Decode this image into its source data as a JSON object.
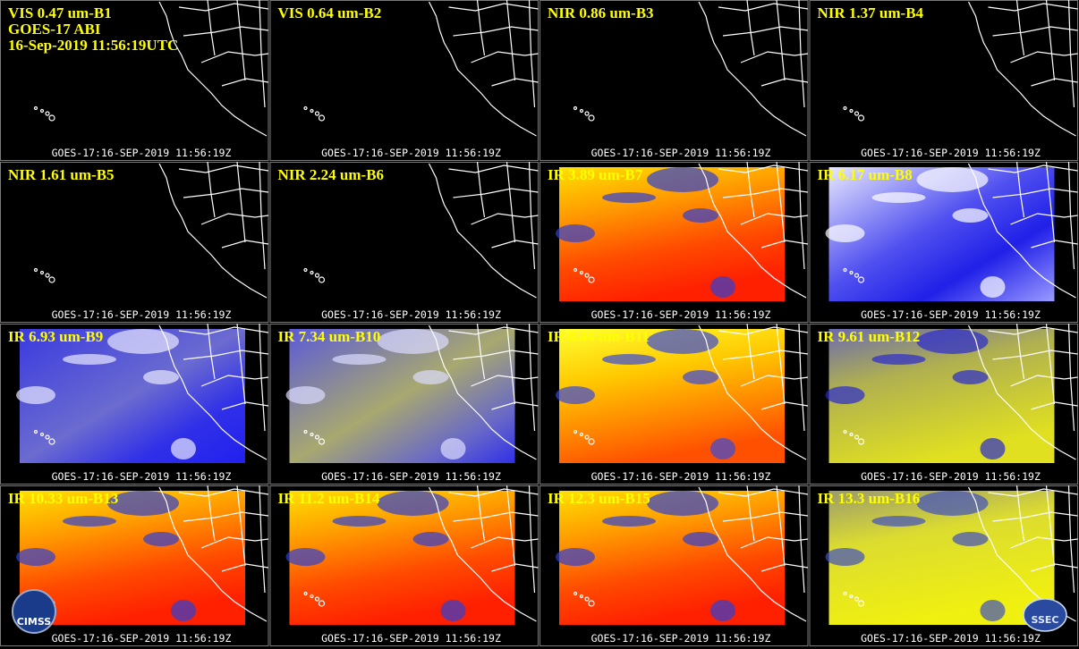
{
  "header": {
    "lines": [
      "GOES-17 ABI",
      "16-Sep-2019 11:56:19UTC"
    ]
  },
  "panels": [
    {
      "label": "VIS 0.47 um-B1"
    },
    {
      "label": "VIS 0.64 um-B2"
    },
    {
      "label": "NIR 0.86 um-B3"
    },
    {
      "label": "NIR 1.37 um-B4"
    },
    {
      "label": "NIR 1.61 um-B5"
    },
    {
      "label": "NIR 2.24 um-B6"
    },
    {
      "label": "IR 3.89 um-B7"
    },
    {
      "label": "IR 6.17 um-B8"
    },
    {
      "label": "IR 6.93 um-B9"
    },
    {
      "label": "IR 7.34 um-B10"
    },
    {
      "label": "IR 8.44 um-B11"
    },
    {
      "label": "IR 9.61 um-B12"
    },
    {
      "label": "IR 10.33 um-B13"
    },
    {
      "label": "IR 11.2 um-B14"
    },
    {
      "label": "IR 12.3 um-B15"
    },
    {
      "label": "IR 13.3 um-B16"
    }
  ],
  "footer": "GOES-17:16-SEP-2019 11:56:19Z",
  "logos": [
    "CIMSS",
    "SSEC"
  ]
}
